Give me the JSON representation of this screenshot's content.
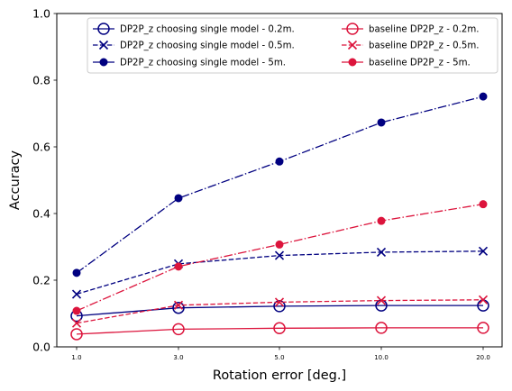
{
  "chart_data": {
    "type": "line",
    "title": "",
    "xlabel": "Rotation error [deg.]",
    "ylabel": "Accuracy",
    "categories": [
      "1.0",
      "3.0",
      "5.0",
      "10.0",
      "20.0"
    ],
    "ylim": [
      0.0,
      1.0
    ],
    "yticks": [
      "0.0",
      "0.2",
      "0.4",
      "0.6",
      "0.8",
      "1.0"
    ],
    "grid": false,
    "legend_position": "top-right",
    "legend_columns": 2,
    "series": [
      {
        "name": "DP2P_z choosing single model - 0.2m.",
        "values": [
          0.093,
          0.117,
          0.122,
          0.124,
          0.124
        ],
        "color": "#000080",
        "dash": "solid",
        "marker": "open-circle"
      },
      {
        "name": "DP2P_z choosing single model - 0.5m.",
        "values": [
          0.158,
          0.249,
          0.274,
          0.284,
          0.287
        ],
        "color": "#000080",
        "dash": "dashed",
        "marker": "x"
      },
      {
        "name": "DP2P_z choosing single model - 5m.",
        "values": [
          0.222,
          0.446,
          0.556,
          0.673,
          0.751
        ],
        "color": "#000080",
        "dash": "dashdot",
        "marker": "filled-circle"
      },
      {
        "name": "baseline DP2P_z - 0.2m.",
        "values": [
          0.038,
          0.053,
          0.056,
          0.057,
          0.057
        ],
        "color": "#DC143C",
        "dash": "solid",
        "marker": "open-circle"
      },
      {
        "name": "baseline DP2P_z - 0.5m.",
        "values": [
          0.071,
          0.125,
          0.134,
          0.139,
          0.141
        ],
        "color": "#DC143C",
        "dash": "dashed",
        "marker": "x"
      },
      {
        "name": "baseline DP2P_z - 5m.",
        "values": [
          0.108,
          0.241,
          0.307,
          0.378,
          0.428
        ],
        "color": "#DC143C",
        "dash": "dashdot",
        "marker": "filled-circle"
      }
    ]
  }
}
